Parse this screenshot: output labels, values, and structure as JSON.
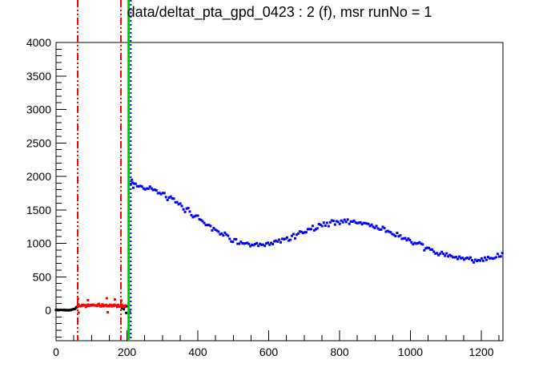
{
  "colors": {
    "background": "#ffffff",
    "axis": "#000000",
    "signal_series": "#0000ff",
    "background_series": "#ff0000",
    "prompt_series": "#000000",
    "t0_line": "#00c800",
    "range_line": "#ff0000",
    "data_start_line": "#0000ff"
  },
  "chart_data": {
    "type": "scatter",
    "title": "data/deltat_pta_gpd_0423 : 2 (f), msr runNo = 1",
    "grid": false,
    "legend": null,
    "x_axis": {
      "min": 0,
      "max": 1261,
      "major_step": 200,
      "minor_step": 50,
      "tick_labels": [
        "0",
        "200",
        "400",
        "600",
        "800",
        "1000",
        "1200"
      ]
    },
    "y_axis": {
      "min": -455,
      "max": 4000,
      "major_step": 500,
      "minor_step": 100,
      "tick_labels": [
        "0",
        "500",
        "1000",
        "1500",
        "2000",
        "2500",
        "3000",
        "3500",
        "4000"
      ]
    },
    "series": [
      {
        "name": "prompt-black",
        "color": "#000000",
        "marker": "square",
        "marker_size": 3,
        "x_start": 0,
        "x_end": 61,
        "spacing": 3,
        "jitter": 10,
        "trend": [
          [
            0,
            3
          ],
          [
            40,
            5
          ],
          [
            48,
            12
          ],
          [
            54,
            30
          ],
          [
            61,
            55
          ]
        ],
        "extra_points": [
          [
            186,
            30
          ],
          [
            191,
            15
          ],
          [
            195,
            50
          ],
          [
            198,
            -40
          ],
          [
            202,
            60
          ]
        ]
      },
      {
        "name": "background-red",
        "color": "#ff0000",
        "marker": "square",
        "marker_size": 3,
        "x_start": 61,
        "x_end": 197,
        "spacing": 2.6,
        "jitter": 25,
        "trend": [
          [
            61,
            70
          ],
          [
            100,
            72
          ],
          [
            150,
            70
          ],
          [
            197,
            68
          ]
        ],
        "extra_points": [
          [
            62,
            170
          ],
          [
            64,
            -35
          ],
          [
            90,
            150
          ],
          [
            143,
            180
          ],
          [
            146,
            -30
          ],
          [
            166,
            160
          ],
          [
            184,
            145
          ]
        ]
      },
      {
        "name": "signal-blue",
        "color": "#0000ff",
        "marker": "square",
        "marker_size": 3,
        "x_start": 211,
        "x_end": 1261,
        "spacing": 4.5,
        "jitter": 52,
        "trend": [
          [
            211,
            1900
          ],
          [
            240,
            1860
          ],
          [
            270,
            1805
          ],
          [
            300,
            1730
          ],
          [
            330,
            1640
          ],
          [
            360,
            1530
          ],
          [
            390,
            1420
          ],
          [
            420,
            1310
          ],
          [
            450,
            1205
          ],
          [
            480,
            1110
          ],
          [
            505,
            1040
          ],
          [
            530,
            985
          ],
          [
            555,
            960
          ],
          [
            580,
            965
          ],
          [
            605,
            990
          ],
          [
            635,
            1040
          ],
          [
            665,
            1100
          ],
          [
            695,
            1165
          ],
          [
            725,
            1230
          ],
          [
            755,
            1280
          ],
          [
            785,
            1315
          ],
          [
            815,
            1330
          ],
          [
            845,
            1320
          ],
          [
            875,
            1290
          ],
          [
            905,
            1245
          ],
          [
            935,
            1185
          ],
          [
            965,
            1115
          ],
          [
            995,
            1040
          ],
          [
            1025,
            965
          ],
          [
            1055,
            900
          ],
          [
            1085,
            845
          ],
          [
            1115,
            800
          ],
          [
            1145,
            772
          ],
          [
            1175,
            758
          ],
          [
            1205,
            762
          ],
          [
            1235,
            785
          ],
          [
            1261,
            810
          ]
        ],
        "extra_points": [
          [
            208,
            -20
          ],
          [
            214,
            1950
          ],
          [
            218,
            1830
          ]
        ]
      }
    ],
    "vertical_markers": [
      {
        "name": "bkg-range-start-line",
        "x": 61,
        "color": "#ff0000",
        "style": "dash-dot-dot",
        "width": 2
      },
      {
        "name": "bkg-range-end-line",
        "x": 183,
        "color": "#ff0000",
        "style": "dash-dot-dot",
        "width": 2
      },
      {
        "name": "t0-line",
        "x": 205,
        "color": "#00c800",
        "style": "solid",
        "width": 3
      },
      {
        "name": "data-start-line",
        "x": 211,
        "color": "#0000ff",
        "style": "dotted",
        "width": 2
      }
    ]
  }
}
